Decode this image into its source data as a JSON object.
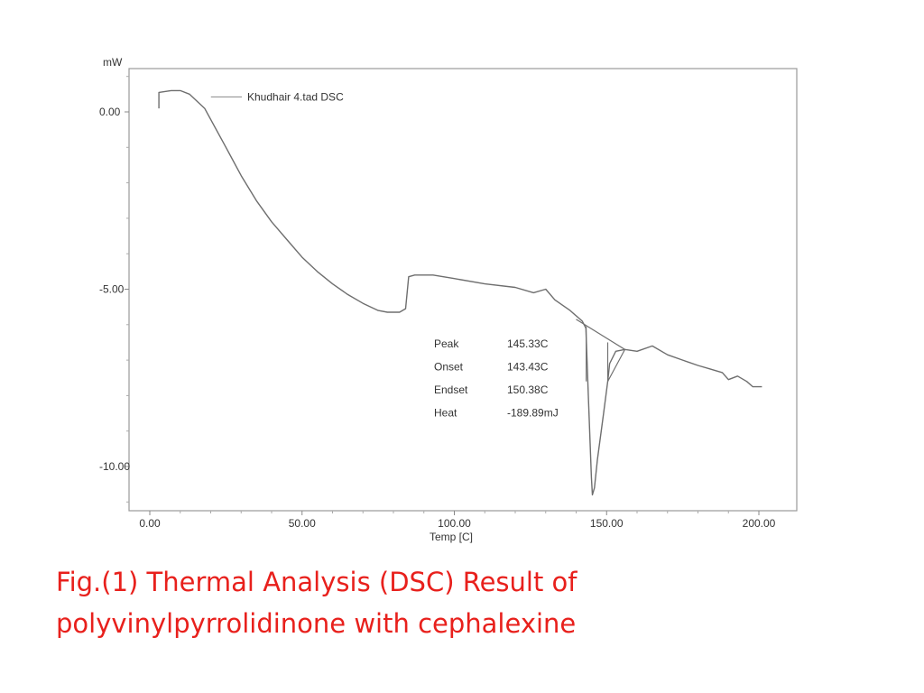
{
  "chart_data": {
    "type": "line",
    "ylabel": "mW",
    "xlabel": "Temp [C]",
    "xlim": [
      0,
      200
    ],
    "ylim": [
      -11.2,
      1.3
    ],
    "x_ticks": [
      {
        "value": 0,
        "label": "0.00"
      },
      {
        "value": 50,
        "label": "50.00"
      },
      {
        "value": 100,
        "label": "100.00"
      },
      {
        "value": 150,
        "label": "150.00"
      },
      {
        "value": 200,
        "label": "200.00"
      }
    ],
    "y_ticks": [
      {
        "value": 0,
        "label": "0.00"
      },
      {
        "value": -5,
        "label": "-5.00"
      },
      {
        "value": -10,
        "label": "-10.00"
      }
    ],
    "grid": false,
    "legend": {
      "label": "Khudhair 4.tad  DSC",
      "placement": "top-left"
    },
    "series": [
      {
        "name": "Khudhair 4.tad  DSC",
        "points": [
          [
            3,
            0.1
          ],
          [
            3,
            0.55
          ],
          [
            7,
            0.6
          ],
          [
            10,
            0.6
          ],
          [
            13,
            0.5
          ],
          [
            18,
            0.1
          ],
          [
            25,
            -1.0
          ],
          [
            30,
            -1.8
          ],
          [
            35,
            -2.5
          ],
          [
            40,
            -3.1
          ],
          [
            45,
            -3.6
          ],
          [
            50,
            -4.1
          ],
          [
            55,
            -4.5
          ],
          [
            60,
            -4.85
          ],
          [
            65,
            -5.15
          ],
          [
            70,
            -5.4
          ],
          [
            75,
            -5.6
          ],
          [
            78,
            -5.65
          ],
          [
            82,
            -5.65
          ],
          [
            84,
            -5.55
          ],
          [
            85,
            -4.65
          ],
          [
            87,
            -4.6
          ],
          [
            93,
            -4.6
          ],
          [
            100,
            -4.7
          ],
          [
            110,
            -4.85
          ],
          [
            120,
            -4.95
          ],
          [
            126,
            -5.1
          ],
          [
            130,
            -5.0
          ],
          [
            133,
            -5.3
          ],
          [
            138,
            -5.6
          ],
          [
            142,
            -5.9
          ],
          [
            143.2,
            -6.1
          ],
          [
            144,
            -8.0
          ],
          [
            145,
            -10.3
          ],
          [
            145.33,
            -10.8
          ],
          [
            146,
            -10.6
          ],
          [
            147,
            -9.8
          ],
          [
            149,
            -8.5
          ],
          [
            150.38,
            -7.6
          ],
          [
            151,
            -7.1
          ],
          [
            153,
            -6.75
          ],
          [
            156,
            -6.7
          ],
          [
            160,
            -6.75
          ],
          [
            165,
            -6.6
          ],
          [
            170,
            -6.85
          ],
          [
            175,
            -7.0
          ],
          [
            180,
            -7.15
          ],
          [
            184,
            -7.25
          ],
          [
            188,
            -7.35
          ],
          [
            190,
            -7.55
          ],
          [
            193,
            -7.45
          ],
          [
            196,
            -7.6
          ],
          [
            198,
            -7.75
          ],
          [
            201,
            -7.75
          ]
        ]
      }
    ],
    "baseline": [
      [
        140,
        -5.85
      ],
      [
        156,
        -6.7
      ]
    ],
    "integration_markers": [
      [
        [
          143.3,
          -6.05
        ],
        [
          143.3,
          -7.6
        ]
      ],
      [
        [
          150.38,
          -6.5
        ],
        [
          150.38,
          -7.6
        ]
      ],
      [
        [
          150.38,
          -7.6
        ],
        [
          156,
          -6.7
        ]
      ]
    ],
    "annotations": [
      {
        "label": "Peak",
        "value": "145.33C"
      },
      {
        "label": "Onset",
        "value": "143.43C"
      },
      {
        "label": "Endset",
        "value": "150.38C"
      },
      {
        "label": "Heat",
        "value": "-189.89mJ"
      }
    ]
  },
  "caption": {
    "line1": "Fig.(1) Thermal Analysis (DSC) Result of",
    "line2": "polyvinylpyrrolidinone with cephalexine"
  }
}
